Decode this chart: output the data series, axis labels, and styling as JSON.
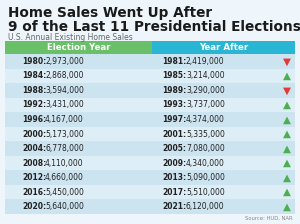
{
  "title_line1": "Home Sales Went Up After",
  "title_line2": "9 of the Last 11 Presidential Elections",
  "subtitle": "U.S. Annual Existing Home Sales",
  "source": "Source: HUD, NAR",
  "header_left": "Election Year",
  "header_right": "Year After",
  "header_left_color": "#6abf69",
  "header_right_color": "#29b6d4",
  "rows": [
    {
      "left_year": "1980",
      "left_val": "2,973,000",
      "right_year": "1981",
      "right_val": "2,419,000",
      "up": false
    },
    {
      "left_year": "1984",
      "left_val": "2,868,000",
      "right_year": "1985",
      "right_val": "3,214,000",
      "up": true
    },
    {
      "left_year": "1988",
      "left_val": "3,594,000",
      "right_year": "1989",
      "right_val": "3,290,000",
      "up": false
    },
    {
      "left_year": "1992",
      "left_val": "3,431,000",
      "right_year": "1993",
      "right_val": "3,737,000",
      "up": true
    },
    {
      "left_year": "1996",
      "left_val": "4,167,000",
      "right_year": "1997",
      "right_val": "4,374,000",
      "up": true
    },
    {
      "left_year": "2000",
      "left_val": "5,173,000",
      "right_year": "2001",
      "right_val": "5,335,000",
      "up": true
    },
    {
      "left_year": "2004",
      "left_val": "6,778,000",
      "right_year": "2005",
      "right_val": "7,080,000",
      "up": true
    },
    {
      "left_year": "2008",
      "left_val": "4,110,000",
      "right_year": "2009",
      "right_val": "4,340,000",
      "up": true
    },
    {
      "left_year": "2012",
      "left_val": "4,660,000",
      "right_year": "2013",
      "right_val": "5,090,000",
      "up": true
    },
    {
      "left_year": "2016",
      "left_val": "5,450,000",
      "right_year": "2017",
      "right_val": "5,510,000",
      "up": true
    },
    {
      "left_year": "2020",
      "left_val": "5,640,000",
      "right_year": "2021",
      "right_val": "6,120,000",
      "up": true
    }
  ],
  "bg_color": "#eef6fb",
  "row_color_light": "#ddeef7",
  "row_color_dark": "#cce3f0",
  "title_color": "#1a1a1a",
  "subtitle_color": "#666666",
  "text_color": "#222222",
  "arrow_up_color": "#4caf50",
  "arrow_down_color": "#e53935"
}
